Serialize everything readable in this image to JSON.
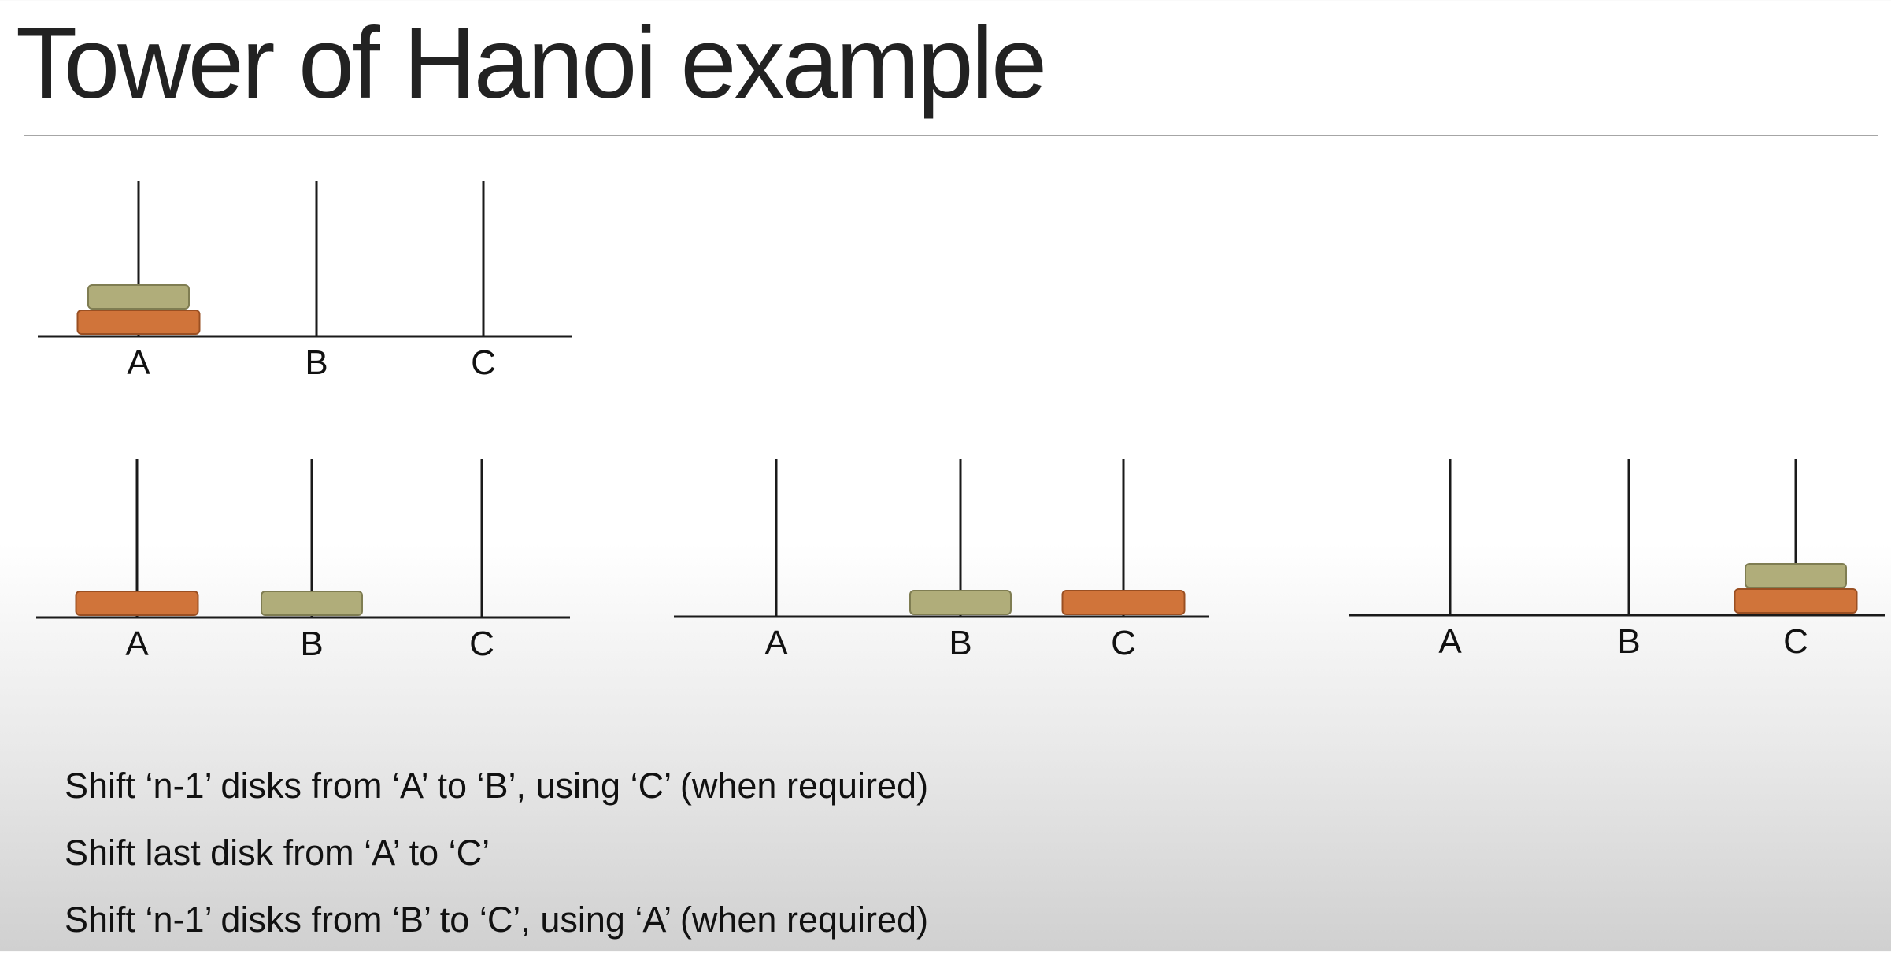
{
  "title": "Tower of Hanoi example",
  "colors": {
    "rod": "#1a1a1a",
    "disk_small": "#b0ad7a",
    "disk_small_border": "#7f7d52",
    "disk_large": "#d0743a",
    "disk_large_border": "#9a4f22"
  },
  "peg_labels": [
    "A",
    "B",
    "C"
  ],
  "states": [
    {
      "name": "initial",
      "pegs": {
        "A": [
          "large",
          "small"
        ],
        "B": [],
        "C": []
      }
    },
    {
      "name": "after-step-1",
      "pegs": {
        "A": [
          "large"
        ],
        "B": [
          "small"
        ],
        "C": []
      }
    },
    {
      "name": "after-step-2",
      "pegs": {
        "A": [],
        "B": [
          "small"
        ],
        "C": [
          "large"
        ]
      }
    },
    {
      "name": "after-step-3",
      "pegs": {
        "A": [],
        "B": [],
        "C": [
          "large",
          "small"
        ]
      }
    }
  ],
  "steps": [
    "Shift ‘n-1’ disks from ‘A’ to ‘B’, using ‘C’ (when required)",
    "Shift last disk from ‘A’ to ‘C’",
    "Shift ‘n-1’ disks from ‘B’ to ‘C’, using ‘A’ (when required)"
  ]
}
